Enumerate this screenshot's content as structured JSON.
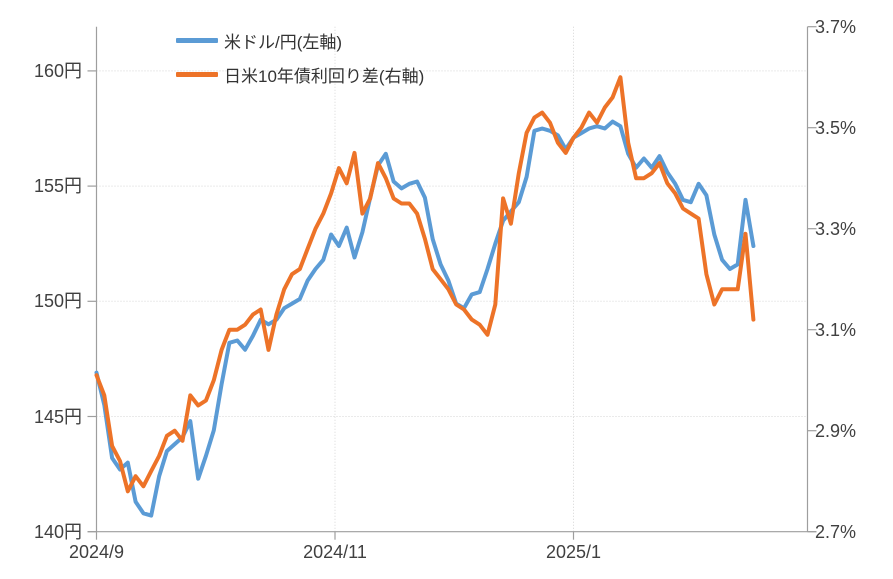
{
  "chart_data": {
    "type": "line",
    "title": "",
    "legend": [
      {
        "label": "米ドル/円(左軸)",
        "color": "#5B9BD5"
      },
      {
        "label": "日米10年債利回り差(右軸)",
        "color": "#ED7328"
      }
    ],
    "left_axis": {
      "unit": "円",
      "tick_values": [
        140,
        145,
        150,
        155,
        160
      ],
      "tick_labels": [
        "140円",
        "145円",
        "150円",
        "155円",
        "160円"
      ],
      "min": 140,
      "max": 161.9
    },
    "right_axis": {
      "unit": "%",
      "tick_values": [
        2.7,
        2.9,
        3.1,
        3.3,
        3.5,
        3.7
      ],
      "tick_labels": [
        "2.7%",
        "2.9%",
        "3.1%",
        "3.3%",
        "3.5%",
        "3.7%"
      ],
      "min": 2.7,
      "max": 3.7
    },
    "x_axis": {
      "tick_labels": [
        "2024/9",
        "2024/11",
        "2025/1"
      ],
      "tick_days": [
        0,
        61,
        122
      ],
      "start_day": 0,
      "end_day": 168
    },
    "series": [
      {
        "name": "米ドル/円(左軸)",
        "axis": "left",
        "color": "#5B9BD5",
        "start_day": 0,
        "step_days": 2,
        "values": [
          146.9,
          145.5,
          143.2,
          142.7,
          143.0,
          141.3,
          140.8,
          140.7,
          142.4,
          143.5,
          143.8,
          144.1,
          144.8,
          142.3,
          143.3,
          144.4,
          146.4,
          148.2,
          148.3,
          147.9,
          148.5,
          149.2,
          149.0,
          149.2,
          149.7,
          149.9,
          150.1,
          150.9,
          151.4,
          151.8,
          152.9,
          152.4,
          153.2,
          151.9,
          153.0,
          154.5,
          155.9,
          156.4,
          155.2,
          154.9,
          155.1,
          155.2,
          154.5,
          152.7,
          151.6,
          150.9,
          149.9,
          149.7,
          150.3,
          150.4,
          151.4,
          152.5,
          153.5,
          153.9,
          154.3,
          155.4,
          157.4,
          157.5,
          157.4,
          157.2,
          156.6,
          157.1,
          157.3,
          157.5,
          157.6,
          157.5,
          157.8,
          157.6,
          156.4,
          155.8,
          156.2,
          155.8,
          156.3,
          155.6,
          155.1,
          154.4,
          154.3,
          155.1,
          154.6,
          152.9,
          151.8,
          151.4,
          151.6,
          154.4,
          152.4
        ]
      },
      {
        "name": "日米10年債利回り差(右軸)",
        "axis": "right",
        "color": "#ED7328",
        "start_day": 0,
        "step_days": 2,
        "values": [
          3.01,
          2.97,
          2.87,
          2.84,
          2.78,
          2.81,
          2.79,
          2.82,
          2.85,
          2.89,
          2.9,
          2.88,
          2.97,
          2.95,
          2.96,
          3.0,
          3.06,
          3.1,
          3.1,
          3.11,
          3.13,
          3.14,
          3.06,
          3.13,
          3.18,
          3.21,
          3.22,
          3.26,
          3.3,
          3.33,
          3.37,
          3.42,
          3.39,
          3.45,
          3.33,
          3.36,
          3.43,
          3.4,
          3.36,
          3.35,
          3.35,
          3.33,
          3.28,
          3.22,
          3.2,
          3.18,
          3.15,
          3.14,
          3.12,
          3.11,
          3.09,
          3.15,
          3.36,
          3.31,
          3.41,
          3.49,
          3.52,
          3.53,
          3.51,
          3.47,
          3.45,
          3.48,
          3.5,
          3.53,
          3.51,
          3.54,
          3.56,
          3.6,
          3.47,
          3.4,
          3.4,
          3.41,
          3.43,
          3.39,
          3.37,
          3.34,
          3.33,
          3.32,
          3.21,
          3.15,
          3.18,
          3.18,
          3.18,
          3.29,
          3.12
        ]
      }
    ],
    "grid": true,
    "legend_position": "top-left-inside"
  },
  "colors": {
    "grid": "#D6D6D6",
    "axis": "#9E9E9E",
    "text": "#404040"
  }
}
